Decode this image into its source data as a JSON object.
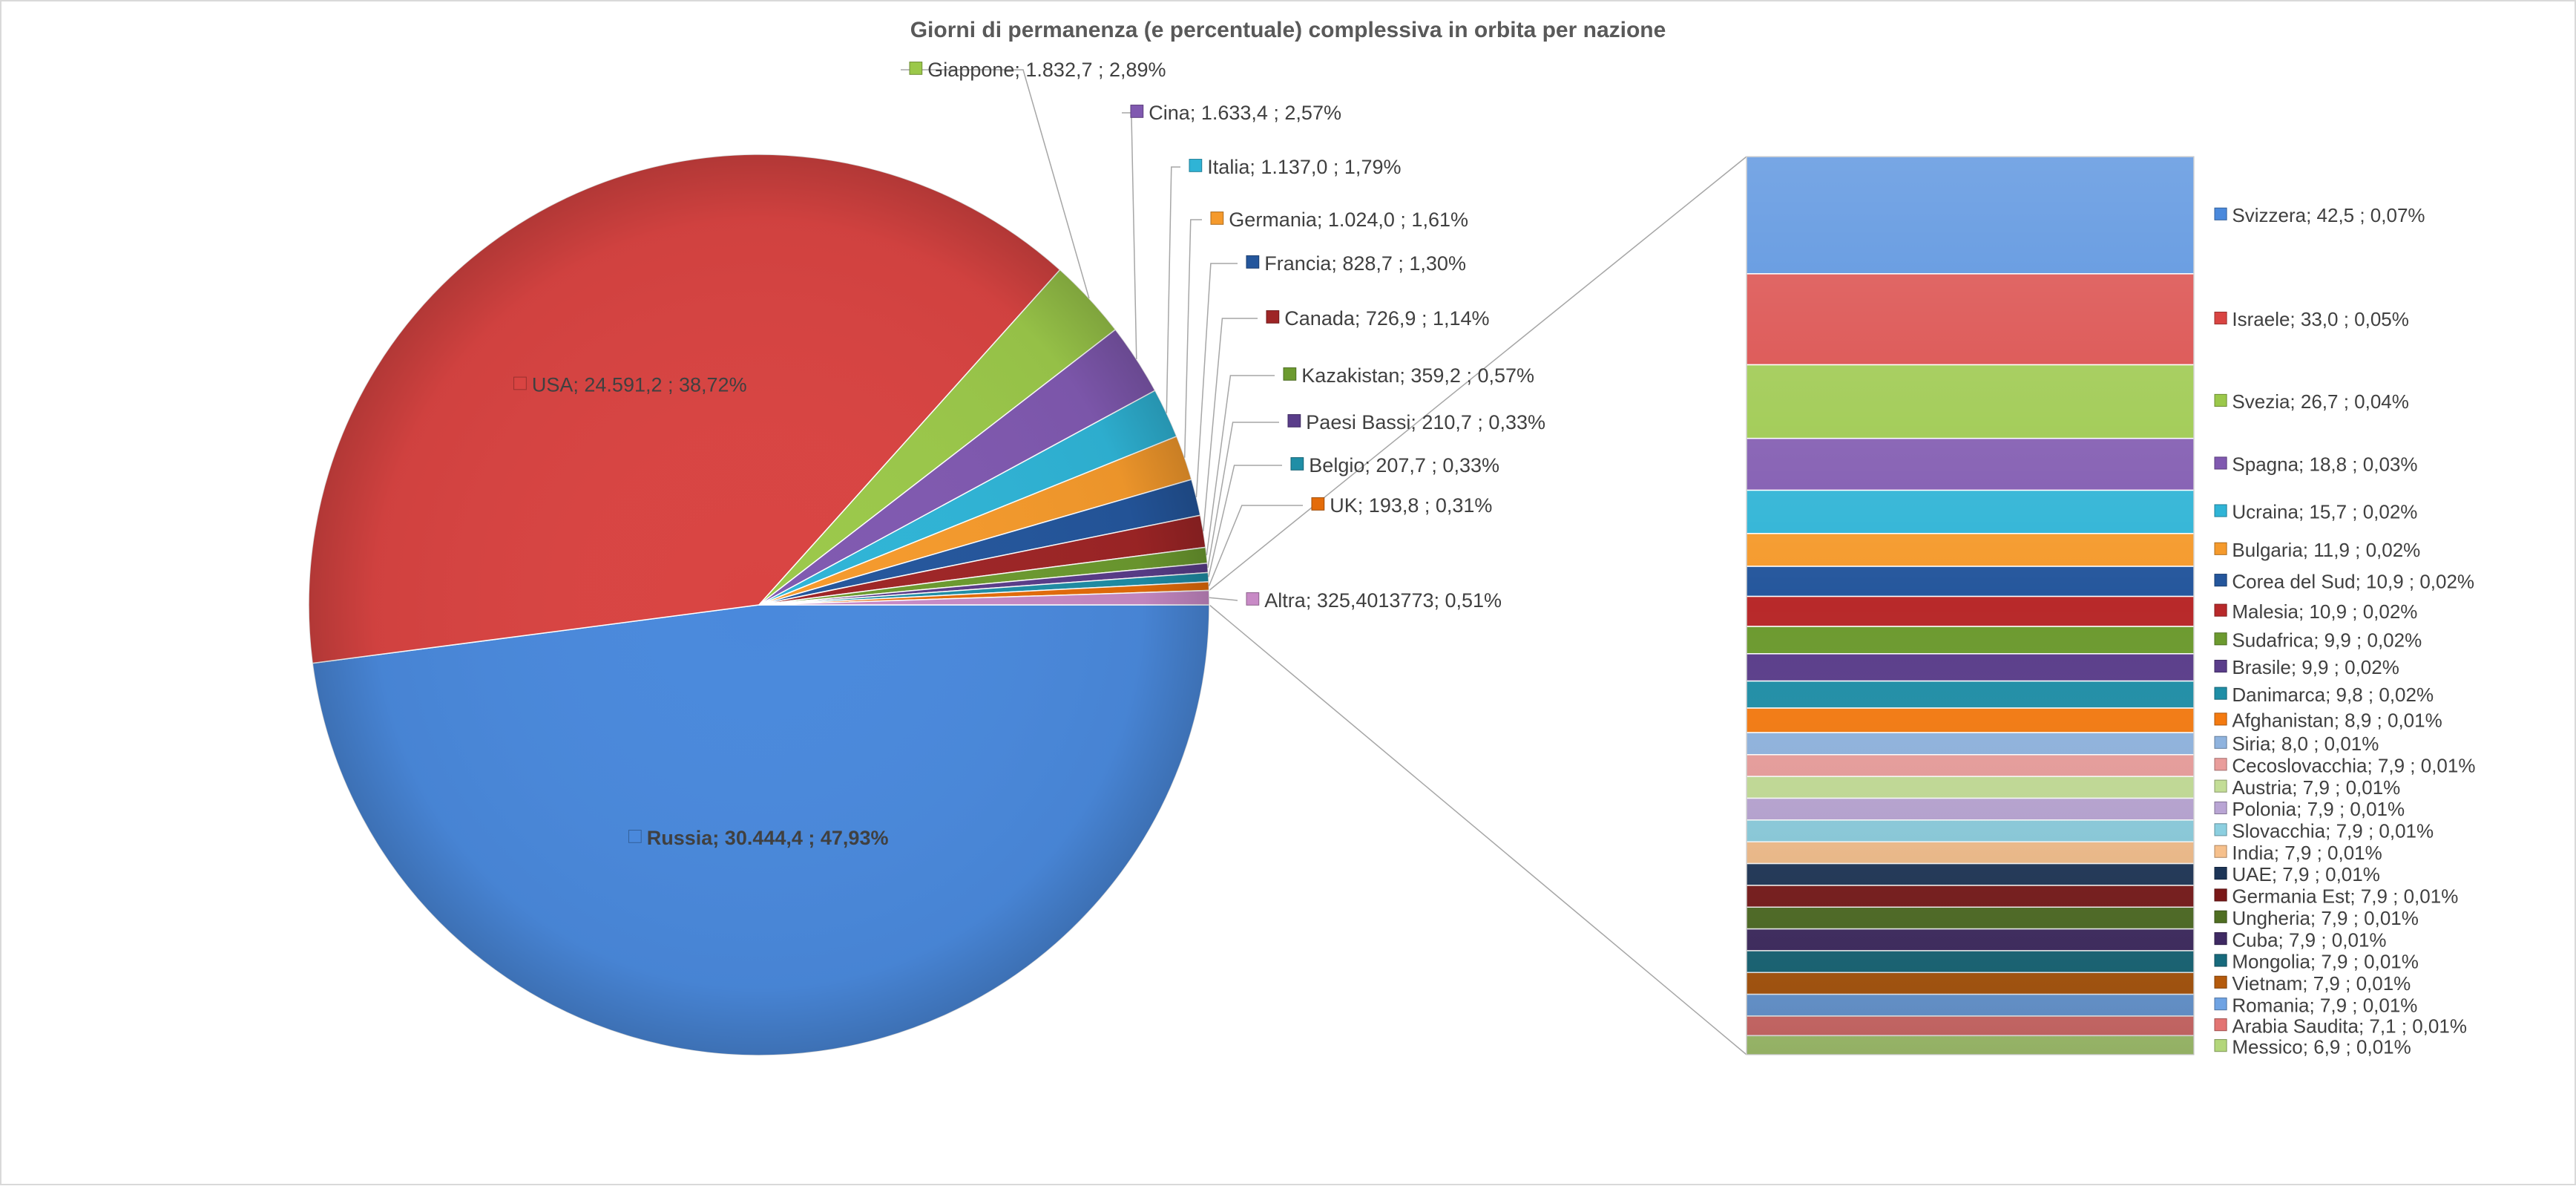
{
  "chart_data": {
    "type": "pie",
    "variant": "bar-of-pie",
    "title": "Giorni di permanenza (e percentuale) complessiva in orbita per nazione",
    "grid": false,
    "legend": "none",
    "pie_slices": [
      {
        "name": "Russia",
        "value": 30444.4,
        "label": "Russia;  30.444,4 ; 47,93%",
        "color": "#4a89dc"
      },
      {
        "name": "USA",
        "value": 24591.2,
        "label": "USA;  24.591,2 ; 38,72%",
        "color": "#d94442"
      },
      {
        "name": "Giappone",
        "value": 1832.7,
        "label": "Giappone;  1.832,7 ; 2,89%",
        "color": "#9bc84a"
      },
      {
        "name": "Cina",
        "value": 1633.4,
        "label": "Cina;  1.633,4 ; 2,57%",
        "color": "#8059b0"
      },
      {
        "name": "Italia",
        "value": 1137.0,
        "label": "Italia;  1.137,0 ; 1,79%",
        "color": "#2fb4d6"
      },
      {
        "name": "Germania",
        "value": 1024.0,
        "label": "Germania;  1.024,0 ; 1,61%",
        "color": "#f59a2c"
      },
      {
        "name": "Francia",
        "value": 828.7,
        "label": "Francia;  828,7 ; 1,30%",
        "color": "#24569c"
      },
      {
        "name": "Canada",
        "value": 726.9,
        "label": "Canada;  726,9 ; 1,14%",
        "color": "#9e2526"
      },
      {
        "name": "Kazakistan",
        "value": 359.2,
        "label": "Kazakistan;  359,2 ; 0,57%",
        "color": "#6c9a2f"
      },
      {
        "name": "Paesi Bassi",
        "value": 210.7,
        "label": "Paesi Bassi;  210,7 ; 0,33%",
        "color": "#5a3d8a"
      },
      {
        "name": "Belgio",
        "value": 207.7,
        "label": "Belgio;  207,7 ; 0,33%",
        "color": "#1f8ea6"
      },
      {
        "name": "UK",
        "value": 193.8,
        "label": "UK;  193,8 ; 0,31%",
        "color": "#e46c0a"
      },
      {
        "name": "Altra",
        "value": 325.4013773,
        "label": "Altra; 325,4013773; 0,51%",
        "color": "#c88ac6"
      }
    ],
    "bar_slices": [
      {
        "name": "Svizzera",
        "value": 42.5,
        "label": "Svizzera;  42,5 ; 0,07%",
        "color": "#4a89dc"
      },
      {
        "name": "Israele",
        "value": 33.0,
        "label": "Israele;  33,0 ; 0,05%",
        "color": "#d94442"
      },
      {
        "name": "Svezia",
        "value": 26.7,
        "label": "Svezia;  26,7 ; 0,04%",
        "color": "#9bc84a"
      },
      {
        "name": "Spagna",
        "value": 18.8,
        "label": "Spagna;  18,8 ; 0,03%",
        "color": "#8059b0"
      },
      {
        "name": "Ucraina",
        "value": 15.7,
        "label": "Ucraina;  15,7 ; 0,02%",
        "color": "#2fb4d6"
      },
      {
        "name": "Bulgaria",
        "value": 11.9,
        "label": "Bulgaria;  11,9 ; 0,02%",
        "color": "#f59a2c"
      },
      {
        "name": "Corea del Sud",
        "value": 10.9,
        "label": "Corea del Sud;  10,9 ; 0,02%",
        "color": "#24569c"
      },
      {
        "name": "Malesia",
        "value": 10.9,
        "label": "Malesia;  10,9 ; 0,02%",
        "color": "#b8292a"
      },
      {
        "name": "Sudafrica",
        "value": 9.9,
        "label": "Sudafrica;  9,9 ; 0,02%",
        "color": "#6c9a2f"
      },
      {
        "name": "Brasile",
        "value": 9.9,
        "label": "Brasile;  9,9 ; 0,02%",
        "color": "#5a3d8a"
      },
      {
        "name": "Danimarca",
        "value": 9.8,
        "label": "Danimarca;  9,8 ; 0,02%",
        "color": "#1f8ea6"
      },
      {
        "name": "Afghanistan",
        "value": 8.9,
        "label": "Afghanistan;  8,9 ; 0,01%",
        "color": "#f47a10"
      },
      {
        "name": "Siria",
        "value": 8.0,
        "label": "Siria;  8,0 ; 0,01%",
        "color": "#8fb3de"
      },
      {
        "name": "Cecoslovacchia",
        "value": 7.9,
        "label": "Cecoslovacchia;  7,9 ; 0,01%",
        "color": "#e99d9b"
      },
      {
        "name": "Austria",
        "value": 7.9,
        "label": "Austria;  7,9 ; 0,01%",
        "color": "#c3dd96"
      },
      {
        "name": "Polonia",
        "value": 7.9,
        "label": "Polonia;  7,9 ; 0,01%",
        "color": "#b9a5d4"
      },
      {
        "name": "Slovacchia",
        "value": 7.9,
        "label": "Slovacchia;  7,9 ; 0,01%",
        "color": "#8ccfe0"
      },
      {
        "name": "India",
        "value": 7.9,
        "label": "India;  7,9 ; 0,01%",
        "color": "#f6c08c"
      },
      {
        "name": "UAE",
        "value": 7.9,
        "label": "UAE;  7,9 ; 0,01%",
        "color": "#1d3557"
      },
      {
        "name": "Germania Est",
        "value": 7.9,
        "label": "Germania Est;  7,9 ; 0,01%",
        "color": "#7a1818"
      },
      {
        "name": "Ungheria",
        "value": 7.9,
        "label": "Ungheria;  7,9 ; 0,01%",
        "color": "#4f6e22"
      },
      {
        "name": "Cuba",
        "value": 7.9,
        "label": "Cuba;  7,9 ; 0,01%",
        "color": "#3f2a63"
      },
      {
        "name": "Mongolia",
        "value": 7.9,
        "label": "Mongolia;  7,9 ; 0,01%",
        "color": "#176a7c"
      },
      {
        "name": "Vietnam",
        "value": 7.9,
        "label": "Vietnam;  7,9 ; 0,01%",
        "color": "#b45a0c"
      },
      {
        "name": "Romania",
        "value": 7.9,
        "label": "Romania;  7,9 ; 0,01%",
        "color": "#6fa3e3"
      },
      {
        "name": "Arabia Saudita",
        "value": 7.1,
        "label": "Arabia Saudita;  7,1 ; 0,01%",
        "color": "#e37472"
      },
      {
        "name": "Messico",
        "value": 6.9,
        "label": "Messico;  6,9 ; 0,01%",
        "color": "#b3d67a"
      }
    ]
  }
}
